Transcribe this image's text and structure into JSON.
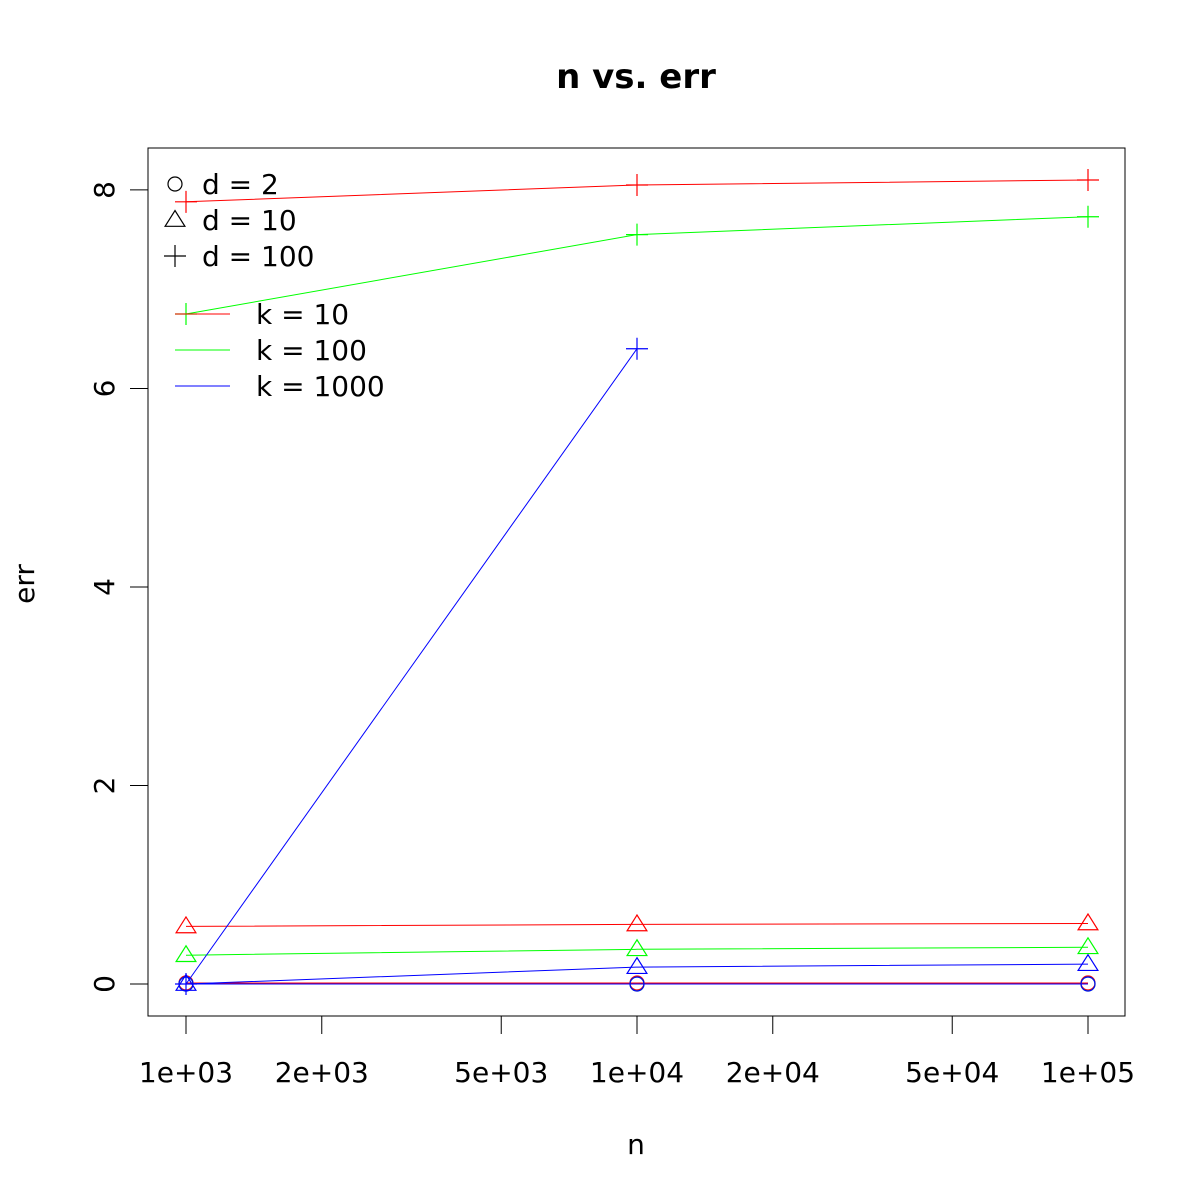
{
  "chart_data": {
    "type": "line",
    "title": "n vs. err",
    "xlabel": "n",
    "ylabel": "err",
    "x_scale": "log",
    "xlim": [
      1000,
      100000
    ],
    "ylim": [
      0,
      8.1
    ],
    "x_ticks": [
      {
        "value": 1000,
        "label": "1e+03"
      },
      {
        "value": 2000,
        "label": "2e+03"
      },
      {
        "value": 5000,
        "label": "5e+03"
      },
      {
        "value": 10000,
        "label": "1e+04"
      },
      {
        "value": 20000,
        "label": "2e+04"
      },
      {
        "value": 50000,
        "label": "5e+04"
      },
      {
        "value": 100000,
        "label": "1e+05"
      }
    ],
    "y_ticks": [
      {
        "value": 0,
        "label": "0"
      },
      {
        "value": 2,
        "label": "2"
      },
      {
        "value": 4,
        "label": "4"
      },
      {
        "value": 6,
        "label": "6"
      },
      {
        "value": 8,
        "label": "8"
      }
    ],
    "grid": false,
    "legend_shapes": {
      "position": "top-left",
      "entries": [
        {
          "label": "d = 2",
          "marker": "circle"
        },
        {
          "label": "d = 10",
          "marker": "triangle"
        },
        {
          "label": "d = 100",
          "marker": "plus"
        }
      ]
    },
    "legend_colors": {
      "position": "top-left",
      "entries": [
        {
          "label": "k = 10",
          "color": "#ff0000"
        },
        {
          "label": "k = 100",
          "color": "#00ff00"
        },
        {
          "label": "k = 1000",
          "color": "#0000ff"
        }
      ]
    },
    "series": [
      {
        "k": "10",
        "d": "2",
        "color": "#ff0000",
        "marker": "circle",
        "x": [
          1000,
          10000,
          100000
        ],
        "y": [
          0.01,
          0.01,
          0.01
        ]
      },
      {
        "k": "100",
        "d": "2",
        "color": "#00ff00",
        "marker": "circle",
        "x": [
          1000,
          10000,
          100000
        ],
        "y": [
          0.0,
          0.0,
          0.0
        ]
      },
      {
        "k": "1000",
        "d": "2",
        "color": "#0000ff",
        "marker": "circle",
        "x": [
          1000,
          10000,
          100000
        ],
        "y": [
          0.0,
          0.0,
          0.0
        ]
      },
      {
        "k": "10",
        "d": "10",
        "color": "#ff0000",
        "marker": "triangle",
        "x": [
          1000,
          10000,
          100000
        ],
        "y": [
          0.58,
          0.6,
          0.61
        ]
      },
      {
        "k": "100",
        "d": "10",
        "color": "#00ff00",
        "marker": "triangle",
        "x": [
          1000,
          10000,
          100000
        ],
        "y": [
          0.29,
          0.35,
          0.37
        ]
      },
      {
        "k": "1000",
        "d": "10",
        "color": "#0000ff",
        "marker": "triangle",
        "x": [
          1000,
          10000,
          100000
        ],
        "y": [
          0.0,
          0.17,
          0.2
        ]
      },
      {
        "k": "10",
        "d": "100",
        "color": "#ff0000",
        "marker": "plus",
        "x": [
          1000,
          10000,
          100000
        ],
        "y": [
          7.88,
          8.05,
          8.1
        ]
      },
      {
        "k": "100",
        "d": "100",
        "color": "#00ff00",
        "marker": "plus",
        "x": [
          1000,
          10000,
          100000
        ],
        "y": [
          6.75,
          7.55,
          7.73
        ]
      },
      {
        "k": "1000",
        "d": "100",
        "color": "#0000ff",
        "marker": "plus",
        "x": [
          1000,
          10000
        ],
        "y": [
          0.0,
          6.4
        ]
      }
    ]
  }
}
